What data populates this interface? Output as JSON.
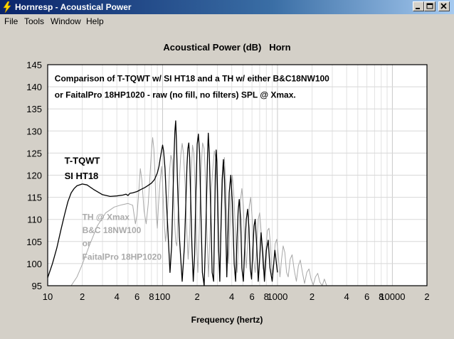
{
  "window": {
    "title": "Hornresp - Acoustical Power",
    "icon": "lightning-icon",
    "buttons": [
      "minimize-icon",
      "maximize-icon",
      "close-icon"
    ]
  },
  "menu": [
    "File",
    "Tools",
    "Window",
    "Help"
  ],
  "chart_data": {
    "type": "line",
    "title": "Acoustical Power (dB)   Horn",
    "xlabel": "Frequency (hertz)",
    "ylabel": "",
    "xscale": "log",
    "xlim": [
      10,
      20000
    ],
    "ylim": [
      95,
      145
    ],
    "grid": true,
    "background": "#ffffff",
    "yticks": [
      95,
      100,
      105,
      110,
      115,
      120,
      125,
      130,
      135,
      140,
      145
    ],
    "xtick_labels": [
      {
        "x": 10,
        "label": "10"
      },
      {
        "x": 20,
        "label": "2"
      },
      {
        "x": 40,
        "label": "4"
      },
      {
        "x": 60,
        "label": "6"
      },
      {
        "x": 80,
        "label": "8"
      },
      {
        "x": 100,
        "label": "100"
      },
      {
        "x": 200,
        "label": "2"
      },
      {
        "x": 400,
        "label": "4"
      },
      {
        "x": 600,
        "label": "6"
      },
      {
        "x": 800,
        "label": "8"
      },
      {
        "x": 1000,
        "label": "1000"
      },
      {
        "x": 2000,
        "label": "2"
      },
      {
        "x": 4000,
        "label": "4"
      },
      {
        "x": 6000,
        "label": "6"
      },
      {
        "x": 8000,
        "label": "8"
      },
      {
        "x": 10000,
        "label": "10000"
      },
      {
        "x": 20000,
        "label": "2"
      }
    ],
    "annotations": [
      {
        "text": "Comparison of T-TQWT w/ SI HT18 and a TH w/ either B&C18NW100",
        "x": 11.5,
        "y": 141.2,
        "color": "#000000",
        "size": 12
      },
      {
        "text": "or FaitalPro 18HP1020 - raw (no fill, no filters) SPL @ Xmax.",
        "x": 11.5,
        "y": 137.5,
        "color": "#000000",
        "size": 12
      },
      {
        "text": "T-TQWT",
        "x": 14,
        "y": 122.6,
        "color": "#000000",
        "size": 13
      },
      {
        "text": "SI HT18",
        "x": 14,
        "y": 119.1,
        "color": "#000000",
        "size": 13
      },
      {
        "text": "TH @ Xmax",
        "x": 20,
        "y": 109.9,
        "color": "#aaaaaa",
        "size": 12
      },
      {
        "text": "B&C 18NW100",
        "x": 20,
        "y": 106.9,
        "color": "#aaaaaa",
        "size": 12
      },
      {
        "text": "or",
        "x": 20,
        "y": 103.9,
        "color": "#aaaaaa",
        "size": 12
      },
      {
        "text": "FaitalPro 18HP1020",
        "x": 20,
        "y": 100.9,
        "color": "#aaaaaa",
        "size": 12
      }
    ],
    "series": [
      {
        "color": "#000000",
        "x": [
          10,
          11,
          12,
          13,
          14,
          15,
          16,
          17,
          18,
          20,
          22,
          25,
          30,
          35,
          40,
          45,
          48,
          50,
          52,
          55,
          60,
          65,
          70,
          75,
          80,
          85,
          90,
          93,
          95,
          98,
          100,
          102,
          105,
          108,
          112,
          116,
          120,
          123,
          126,
          128,
          130,
          132,
          135,
          140,
          148,
          155,
          160,
          163,
          166,
          169,
          172,
          176,
          180,
          185,
          190,
          195,
          200,
          205,
          210,
          215,
          222,
          230,
          238,
          246,
          250,
          255,
          262,
          270,
          278,
          283,
          288,
          293,
          297,
          302,
          308,
          315,
          322,
          330,
          338,
          346,
          355,
          362,
          370,
          380,
          392,
          405,
          420,
          432,
          445,
          455,
          465,
          478,
          490,
          505,
          520,
          535,
          550,
          565,
          580,
          595,
          610,
          625,
          640,
          660,
          680,
          700,
          720,
          745,
          770,
          800,
          830,
          860,
          900,
          950,
          1000
        ],
        "y": [
          96.8,
          100.0,
          103.5,
          107.5,
          111.0,
          114.0,
          116.0,
          117.0,
          117.6,
          118.0,
          117.8,
          116.8,
          115.6,
          115.2,
          115.3,
          115.5,
          115.7,
          115.4,
          115.9,
          116.0,
          116.3,
          116.8,
          117.2,
          117.7,
          118.2,
          119.0,
          120.5,
          122.0,
          123.5,
          125.5,
          126.8,
          125.5,
          121.5,
          114.0,
          106.0,
          98.0,
          104.0,
          115.0,
          125.0,
          130.0,
          132.3,
          128.0,
          118.0,
          106.0,
          96.0,
          104.0,
          115.0,
          122.0,
          126.0,
          127.3,
          124.0,
          114.0,
          104.0,
          96.0,
          102.0,
          116.0,
          127.0,
          129.3,
          125.0,
          113.0,
          98.0,
          95.0,
          108.0,
          124.0,
          129.5,
          125.0,
          113.0,
          98.0,
          96.0,
          108.0,
          120.0,
          125.7,
          123.0,
          114.0,
          103.0,
          96.0,
          108.0,
          119.0,
          123.5,
          119.0,
          108.0,
          97.0,
          105.0,
          116.0,
          120.0,
          114.0,
          100.0,
          96.0,
          106.0,
          112.0,
          114.5,
          110.0,
          99.0,
          96.0,
          104.0,
          110.0,
          112.3,
          108.0,
          99.0,
          96.5,
          103.0,
          108.5,
          110.0,
          104.0,
          96.0,
          101.0,
          107.0,
          102.5,
          96.0,
          103.0,
          105.3,
          99.0,
          96.0,
          103.0,
          98.0
        ]
      },
      {
        "color": "#a8a8a8",
        "x": [
          16,
          18,
          20,
          23,
          27,
          32,
          38,
          44,
          50,
          55,
          58,
          60,
          62,
          64,
          66,
          69,
          72,
          75,
          77,
          80,
          82,
          84,
          86,
          88,
          90,
          92,
          95,
          98,
          100,
          103,
          106,
          109,
          112,
          115,
          118,
          121,
          124,
          127,
          130,
          133,
          136,
          140,
          144,
          148,
          152,
          157,
          162,
          167,
          172,
          177,
          182,
          187,
          192,
          197,
          203,
          210,
          217,
          223,
          230,
          237,
          244,
          251,
          258,
          266,
          274,
          282,
          290,
          298,
          306,
          315,
          325,
          335,
          345,
          355,
          365,
          375,
          385,
          395,
          405,
          418,
          432,
          446,
          460,
          475,
          490,
          505,
          520,
          536,
          552,
          568,
          585,
          603,
          621,
          640,
          660,
          680,
          700,
          722,
          745,
          768,
          792,
          817,
          843,
          870,
          897,
          925,
          955,
          985,
          1015,
          1050,
          1085,
          1120,
          1160,
          1200,
          1240,
          1290,
          1340,
          1400,
          1460,
          1520,
          1580,
          1650,
          1720,
          1800,
          1880,
          1960,
          2050,
          2140,
          2240,
          2340,
          2450,
          2560,
          2680
        ],
        "y": [
          95.0,
          97.0,
          99.8,
          104.0,
          108.5,
          111.5,
          112.8,
          113.3,
          113.6,
          113.2,
          109.0,
          111.0,
          116.0,
          121.5,
          119.0,
          112.0,
          109.0,
          113.5,
          118.0,
          125.3,
          128.5,
          126.0,
          120.0,
          111.5,
          108.0,
          113.0,
          118.5,
          122.0,
          118.0,
          110.0,
          105.0,
          108.0,
          115.0,
          121.0,
          124.5,
          123.5,
          118.0,
          110.0,
          105.0,
          104.0,
          110.0,
          119.0,
          124.5,
          127.2,
          125.0,
          118.0,
          108.0,
          101.0,
          107.0,
          119.0,
          126.8,
          125.0,
          117.0,
          105.0,
          98.0,
          110.0,
          122.0,
          127.3,
          126.0,
          118.0,
          106.0,
          97.0,
          106.0,
          117.0,
          121.5,
          125.5,
          124.0,
          116.0,
          104.0,
          98.0,
          110.0,
          120.0,
          124.0,
          118.0,
          108.0,
          100.0,
          108.0,
          116.0,
          120.0,
          115.0,
          106.0,
          98.0,
          106.0,
          114.0,
          117.0,
          113.0,
          104.0,
          99.0,
          106.0,
          113.0,
          115.0,
          110.0,
          101.0,
          98.0,
          104.0,
          110.0,
          111.5,
          107.0,
          99.0,
          98.0,
          103.0,
          107.5,
          108.0,
          104.0,
          97.5,
          100.0,
          104.5,
          105.5,
          102.0,
          97.0,
          101.0,
          104.0,
          102.5,
          98.0,
          97.0,
          101.0,
          102.0,
          98.5,
          96.0,
          99.5,
          100.8,
          98.0,
          95.5,
          98.0,
          98.8,
          96.5,
          95.2,
          97.0,
          97.8,
          95.8,
          95.0,
          96.5,
          95.0
        ]
      }
    ]
  }
}
